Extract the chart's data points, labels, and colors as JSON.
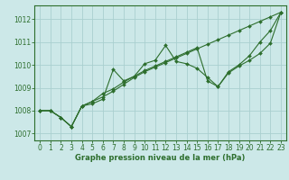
{
  "xlabel": "Graphe pression niveau de la mer (hPa)",
  "background_color": "#cce8e8",
  "grid_color": "#aacfcf",
  "line_color": "#2d6e2d",
  "spine_color": "#2d6e2d",
  "xlim": [
    -0.5,
    23.5
  ],
  "ylim": [
    1006.7,
    1012.6
  ],
  "yticks": [
    1007,
    1008,
    1009,
    1010,
    1011,
    1012
  ],
  "xticks": [
    0,
    1,
    2,
    3,
    4,
    5,
    6,
    7,
    8,
    9,
    10,
    11,
    12,
    13,
    14,
    15,
    16,
    17,
    18,
    19,
    20,
    21,
    22,
    23
  ],
  "series": [
    [
      1008.0,
      1008.0,
      1007.7,
      1007.3,
      1008.2,
      1008.3,
      1008.5,
      1009.8,
      1009.3,
      1009.5,
      1010.05,
      1010.2,
      1010.85,
      1010.15,
      1010.05,
      1009.85,
      1009.45,
      1009.05,
      1009.7,
      1010.0,
      1010.4,
      1011.0,
      1011.5,
      1012.3
    ],
    [
      1008.0,
      1008.0,
      1007.7,
      1007.3,
      1008.2,
      1008.4,
      1008.75,
      1008.95,
      1009.25,
      1009.5,
      1009.75,
      1009.95,
      1010.15,
      1010.35,
      1010.55,
      1010.75,
      1009.3,
      1009.05,
      1009.65,
      1009.95,
      1010.2,
      1010.5,
      1010.95,
      1012.3
    ],
    [
      1008.0,
      1008.0,
      1007.7,
      1007.3,
      1008.2,
      1008.4,
      1008.6,
      1008.85,
      1009.15,
      1009.45,
      1009.7,
      1009.9,
      1010.1,
      1010.3,
      1010.5,
      1010.7,
      1010.9,
      1011.1,
      1011.3,
      1011.5,
      1011.7,
      1011.9,
      1012.1,
      1012.3
    ]
  ],
  "ylabel_fontsize": 6,
  "xlabel_fontsize": 6,
  "tick_labelsize": 5.5,
  "marker_size": 2.0,
  "linewidth": 0.8
}
